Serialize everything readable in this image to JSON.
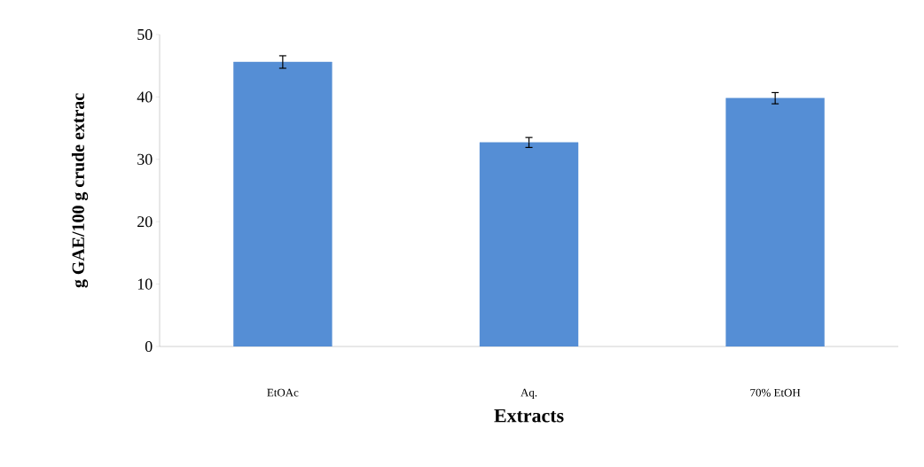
{
  "chart_data": {
    "type": "bar",
    "xlabel": "Extracts",
    "ylabel": "g GAE/100 g crude extrac",
    "categories": [
      "EtOAc",
      "Aq.",
      "70% EtOH"
    ],
    "values": [
      45.6,
      32.7,
      39.8
    ],
    "errors": [
      1.0,
      0.8,
      0.9
    ],
    "color": "#558ed5",
    "ylim": [
      0,
      50
    ],
    "yticks": [
      0,
      10,
      20,
      30,
      40,
      50
    ],
    "grid": false
  }
}
